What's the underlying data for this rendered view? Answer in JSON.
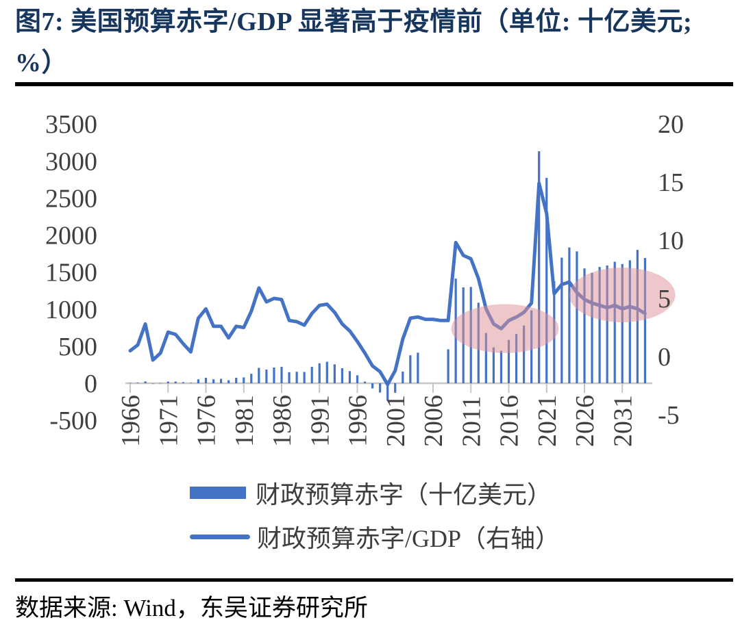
{
  "page": {
    "title": "图7: 美国预算赤字/GDP 显著高于疫情前（单位: 十亿美元; %）",
    "source": "数据来源: Wind，东吴证券研究所"
  },
  "legend": {
    "items": [
      {
        "label": "财政预算赤字（十亿美元）",
        "marker": "bar"
      },
      {
        "label": "财政预算赤字/GDP（右轴）",
        "marker": "line"
      }
    ]
  },
  "colors": {
    "series_blue": "#4472C4",
    "title_navy": "#17365D",
    "axis_text": "#3f3f3f",
    "axis_line": "#C6C6C6",
    "highlight_pink": "#DE8F96",
    "rule_black": "#000000"
  },
  "chart_data": {
    "type": "bar+line combo, dual axis",
    "title": "美国预算赤字/GDP 显著高于疫情前",
    "x_start_year": 1966,
    "x_end_year": 2034,
    "x_tick_labels": [
      1966,
      1971,
      1976,
      1981,
      1986,
      1991,
      1996,
      2001,
      2006,
      2011,
      2016,
      2021,
      2026,
      2031
    ],
    "left_axis": {
      "ticks": [
        3500,
        3000,
        2500,
        2000,
        1500,
        1000,
        500,
        0,
        -500
      ],
      "range": [
        -500,
        3500
      ],
      "unit": "十亿美元"
    },
    "right_axis": {
      "ticks": [
        20,
        15,
        10,
        5,
        0,
        -5
      ],
      "range": [
        -5,
        20
      ],
      "unit": "%"
    },
    "grid": false,
    "legend_position": "bottom",
    "series": [
      {
        "name": "财政预算赤字（十亿美元）",
        "type": "bar",
        "axis": "left",
        "values": [
          3.7,
          8.6,
          25.2,
          -3.2,
          2.8,
          23.0,
          23.4,
          14.9,
          6.1,
          53.2,
          73.7,
          53.7,
          59.2,
          40.7,
          73.8,
          79.0,
          128.0,
          207.8,
          185.4,
          212.3,
          221.2,
          149.7,
          155.2,
          152.6,
          221.0,
          269.2,
          290.3,
          255.1,
          203.2,
          164.0,
          107.4,
          21.9,
          -69.3,
          -125.6,
          -236.2,
          -128.2,
          157.8,
          377.6,
          412.7,
          null,
          null,
          null,
          458.6,
          1412.7,
          1294.4,
          1299.6,
          1087.0,
          679.5,
          484.6,
          438.5,
          584.7,
          665.4,
          779.0,
          983.6,
          3131.9,
          2772.2,
          1375.4,
          1695.2,
          1833,
          1780,
          1550,
          1490,
          1570,
          1590,
          1640,
          1610,
          1660,
          1800,
          1690
        ]
      },
      {
        "name": "财政预算赤字/GDP（右轴）",
        "type": "line",
        "axis": "right",
        "values": [
          0.5,
          1.0,
          2.8,
          -0.3,
          0.3,
          2.1,
          1.9,
          1.1,
          0.4,
          3.3,
          4.1,
          2.6,
          2.6,
          1.6,
          2.6,
          2.5,
          3.9,
          5.9,
          4.7,
          5.0,
          4.9,
          3.1,
          3.0,
          2.7,
          3.7,
          4.4,
          4.5,
          3.8,
          2.8,
          2.2,
          1.3,
          0.3,
          -0.8,
          -1.3,
          -2.4,
          -1.2,
          1.5,
          3.3,
          3.4,
          3.2,
          3.2,
          3.1,
          3.1,
          9.8,
          8.7,
          8.4,
          6.7,
          4.1,
          2.8,
          2.4,
          3.1,
          3.4,
          3.8,
          4.6,
          14.9,
          12.3,
          5.4,
          6.2,
          6.4,
          5.5,
          4.9,
          4.6,
          4.4,
          4.2,
          4.4,
          4.1,
          4.3,
          4.1,
          3.7
        ]
      }
    ],
    "annotations": [
      {
        "type": "ellipse",
        "note": "highlight-pre-pandemic-2013-2019",
        "year_center": 2015.5,
        "pct_center": 2.4,
        "year_radius": 7.1,
        "pct_radius": 2.1
      },
      {
        "type": "ellipse",
        "note": "highlight-projection-2025-2034",
        "year_center": 2031.0,
        "pct_center": 5.3,
        "year_radius": 7.0,
        "pct_radius": 2.35
      }
    ]
  }
}
